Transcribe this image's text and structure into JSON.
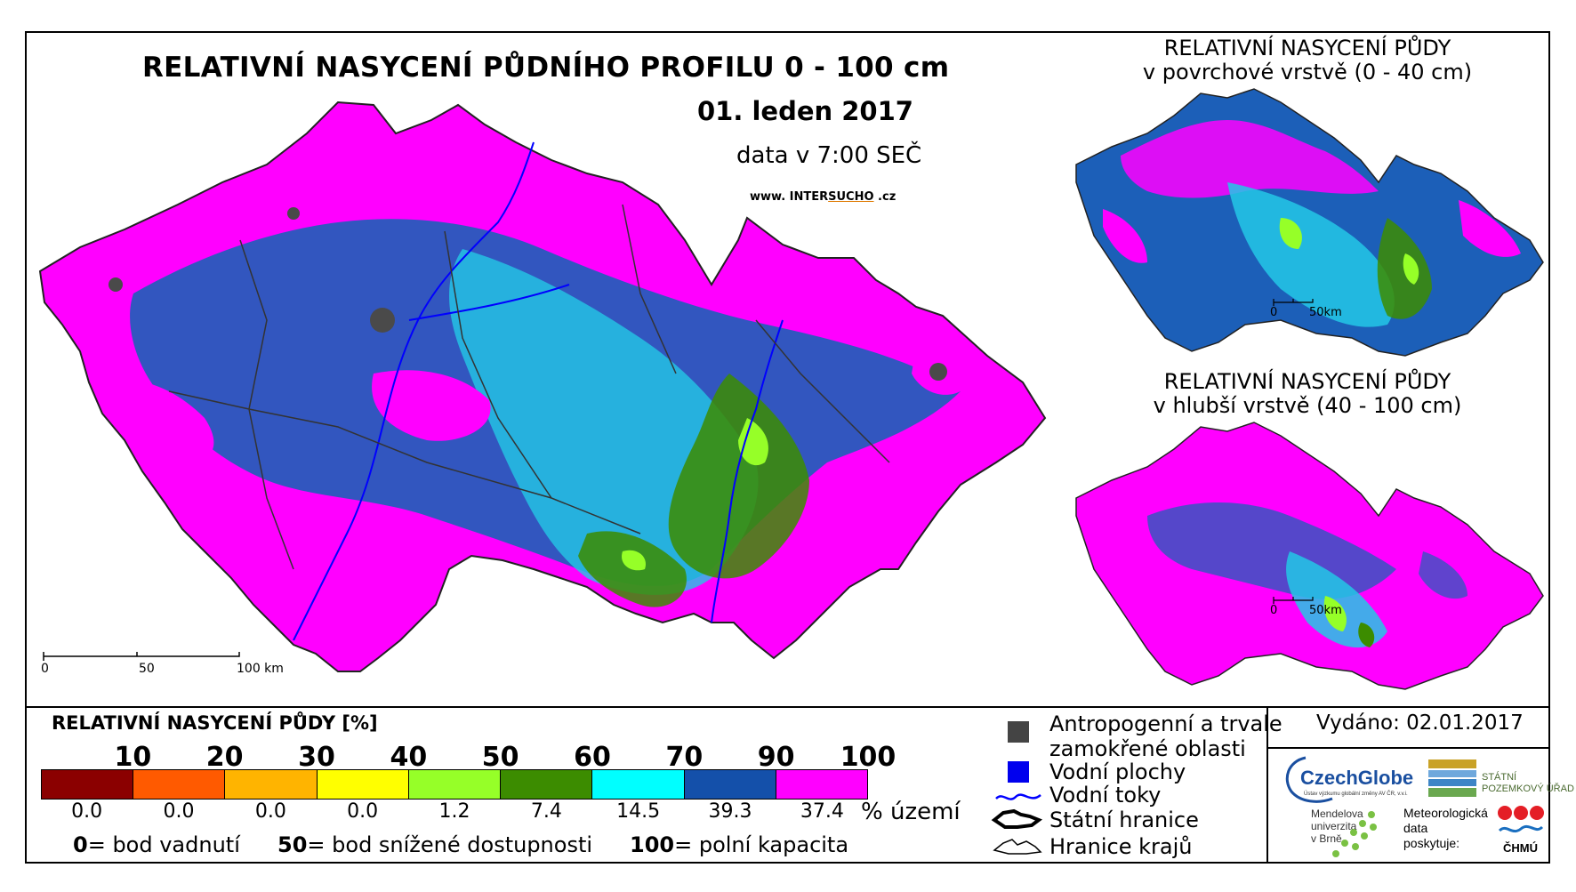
{
  "main": {
    "title": "RELATIVNÍ NASYCENÍ PŮDNÍHO PROFILU 0 - 100 cm",
    "date": "01. leden 2017",
    "time": "data v 7:00 SEČ",
    "website_prefix": "www. INTER",
    "website_mid": "SUCHO",
    "website_suffix": " .cz",
    "scale_labels": [
      "0",
      "50",
      "100 km"
    ]
  },
  "inset_top": {
    "title_line1": "RELATIVNÍ NASYCENÍ PŮDY",
    "title_line2": "v povrchové vrstvě (0 - 40 cm)",
    "scale_labels": [
      "0",
      "50km"
    ]
  },
  "inset_bottom": {
    "title_line1": "RELATIVNÍ NASYCENÍ PŮDY",
    "title_line2": "v hlubší vrstvě (40 - 100 cm)",
    "scale_labels": [
      "0",
      "50km"
    ]
  },
  "legend": {
    "title": "RELATIVNÍ NASYCENÍ PŮDY [%]",
    "ticks": [
      "10",
      "20",
      "30",
      "40",
      "50",
      "60",
      "70",
      "90",
      "100"
    ],
    "colors": [
      "#8b0000",
      "#ff5a00",
      "#ffb400",
      "#ffff00",
      "#96ff28",
      "#3c8c00",
      "#00ffff",
      "#1450aa",
      "#ff00ff"
    ],
    "percentages": [
      "0.0",
      "0.0",
      "0.0",
      "0.0",
      "1.2",
      "7.4",
      "14.5",
      "39.3",
      "37.4"
    ],
    "percent_unit": "% území",
    "defs": [
      {
        "num": "0",
        "text": "= bod vadnutí"
      },
      {
        "num": "50",
        "text": "= bod snížené dostupnosti"
      },
      {
        "num": "100",
        "text": "= polní kapacita"
      }
    ]
  },
  "map_legend": {
    "anthropogenic_line1": "Antropogenní a trvale",
    "anthropogenic_line2": "zamokřené oblasti",
    "water_bodies": "Vodní plochy",
    "rivers": "Vodní toky",
    "state_border": "Státní hranice",
    "region_border": "Hranice krajů"
  },
  "issued": "Vydáno: 02.01.2017",
  "logos": {
    "czechglobe": "CzechGlobe",
    "czechglobe_sub": "Ústav výzkumu globální změny AV ČR, v.v.i.",
    "spu_line1": "STÁTNÍ",
    "spu_line2": "POZEMKOVÝ  ÚŘAD",
    "mendel_line1": "Mendelova",
    "mendel_line2": "univerzita",
    "mendel_line3": "v Brně",
    "meteo_line1": "Meteorologická",
    "meteo_line2": "data",
    "meteo_line3": "poskytuje:",
    "chmu": "ČHMÚ"
  }
}
